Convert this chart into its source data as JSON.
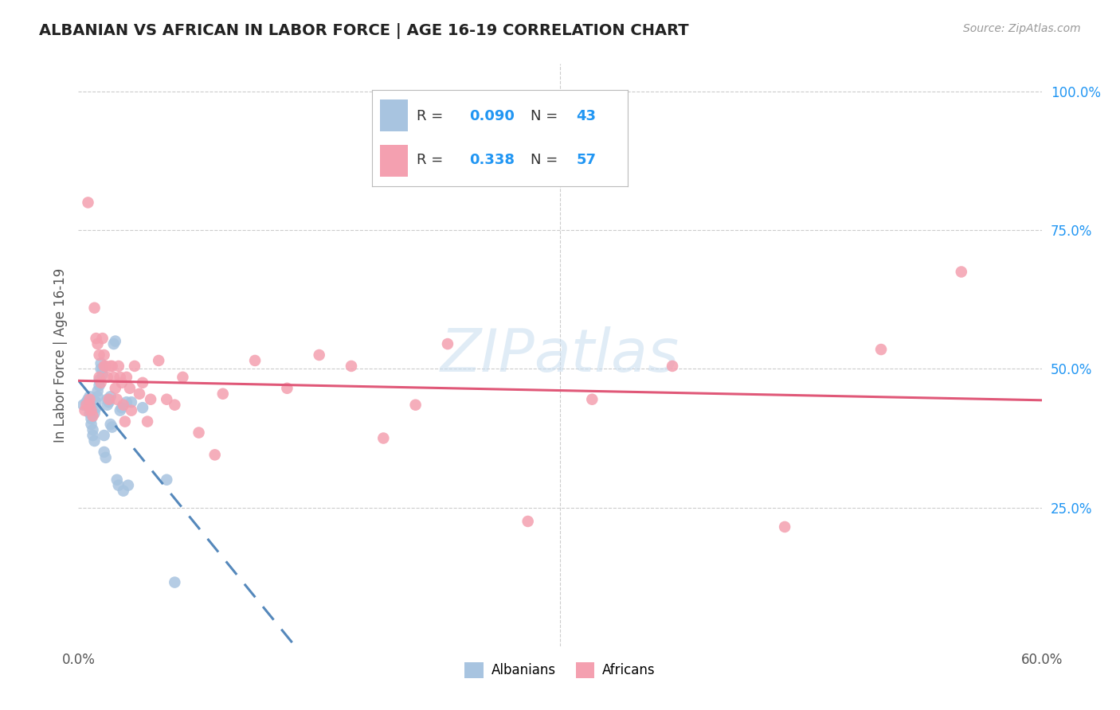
{
  "title": "ALBANIAN VS AFRICAN IN LABOR FORCE | AGE 16-19 CORRELATION CHART",
  "source": "Source: ZipAtlas.com",
  "ylabel": "In Labor Force | Age 16-19",
  "watermark": "ZIPatlas",
  "xlim": [
    0.0,
    0.6
  ],
  "ylim": [
    0.0,
    1.05
  ],
  "albanian_color": "#a8c4e0",
  "african_color": "#f4a0b0",
  "albanian_line_color": "#5588bb",
  "african_line_color": "#e05878",
  "albanian_R": 0.09,
  "albanian_N": 43,
  "african_R": 0.338,
  "african_N": 57,
  "albanian_x": [
    0.003,
    0.005,
    0.006,
    0.007,
    0.007,
    0.008,
    0.008,
    0.009,
    0.009,
    0.01,
    0.01,
    0.011,
    0.011,
    0.012,
    0.012,
    0.013,
    0.013,
    0.014,
    0.014,
    0.015,
    0.015,
    0.016,
    0.016,
    0.017,
    0.018,
    0.018,
    0.019,
    0.02,
    0.02,
    0.021,
    0.022,
    0.023,
    0.024,
    0.025,
    0.026,
    0.027,
    0.028,
    0.03,
    0.031,
    0.033,
    0.04,
    0.055,
    0.06
  ],
  "albanian_y": [
    0.435,
    0.44,
    0.445,
    0.45,
    0.42,
    0.41,
    0.4,
    0.39,
    0.38,
    0.37,
    0.42,
    0.43,
    0.44,
    0.45,
    0.46,
    0.47,
    0.48,
    0.5,
    0.51,
    0.5,
    0.49,
    0.38,
    0.35,
    0.34,
    0.435,
    0.445,
    0.44,
    0.45,
    0.4,
    0.395,
    0.545,
    0.55,
    0.3,
    0.29,
    0.425,
    0.43,
    0.28,
    0.44,
    0.29,
    0.44,
    0.43,
    0.3,
    0.115
  ],
  "african_x": [
    0.004,
    0.005,
    0.006,
    0.007,
    0.007,
    0.008,
    0.009,
    0.01,
    0.011,
    0.012,
    0.013,
    0.013,
    0.014,
    0.015,
    0.016,
    0.016,
    0.017,
    0.018,
    0.019,
    0.02,
    0.021,
    0.022,
    0.023,
    0.024,
    0.025,
    0.026,
    0.027,
    0.028,
    0.029,
    0.03,
    0.032,
    0.033,
    0.035,
    0.038,
    0.04,
    0.043,
    0.045,
    0.05,
    0.055,
    0.06,
    0.065,
    0.075,
    0.085,
    0.09,
    0.11,
    0.13,
    0.15,
    0.17,
    0.19,
    0.21,
    0.23,
    0.28,
    0.32,
    0.37,
    0.44,
    0.5,
    0.55
  ],
  "african_y": [
    0.425,
    0.435,
    0.8,
    0.445,
    0.435,
    0.425,
    0.415,
    0.61,
    0.555,
    0.545,
    0.525,
    0.485,
    0.475,
    0.555,
    0.525,
    0.505,
    0.505,
    0.485,
    0.445,
    0.505,
    0.505,
    0.485,
    0.465,
    0.445,
    0.505,
    0.485,
    0.475,
    0.435,
    0.405,
    0.485,
    0.465,
    0.425,
    0.505,
    0.455,
    0.475,
    0.405,
    0.445,
    0.515,
    0.445,
    0.435,
    0.485,
    0.385,
    0.345,
    0.455,
    0.515,
    0.465,
    0.525,
    0.505,
    0.375,
    0.435,
    0.545,
    0.225,
    0.445,
    0.505,
    0.215,
    0.535,
    0.675
  ]
}
